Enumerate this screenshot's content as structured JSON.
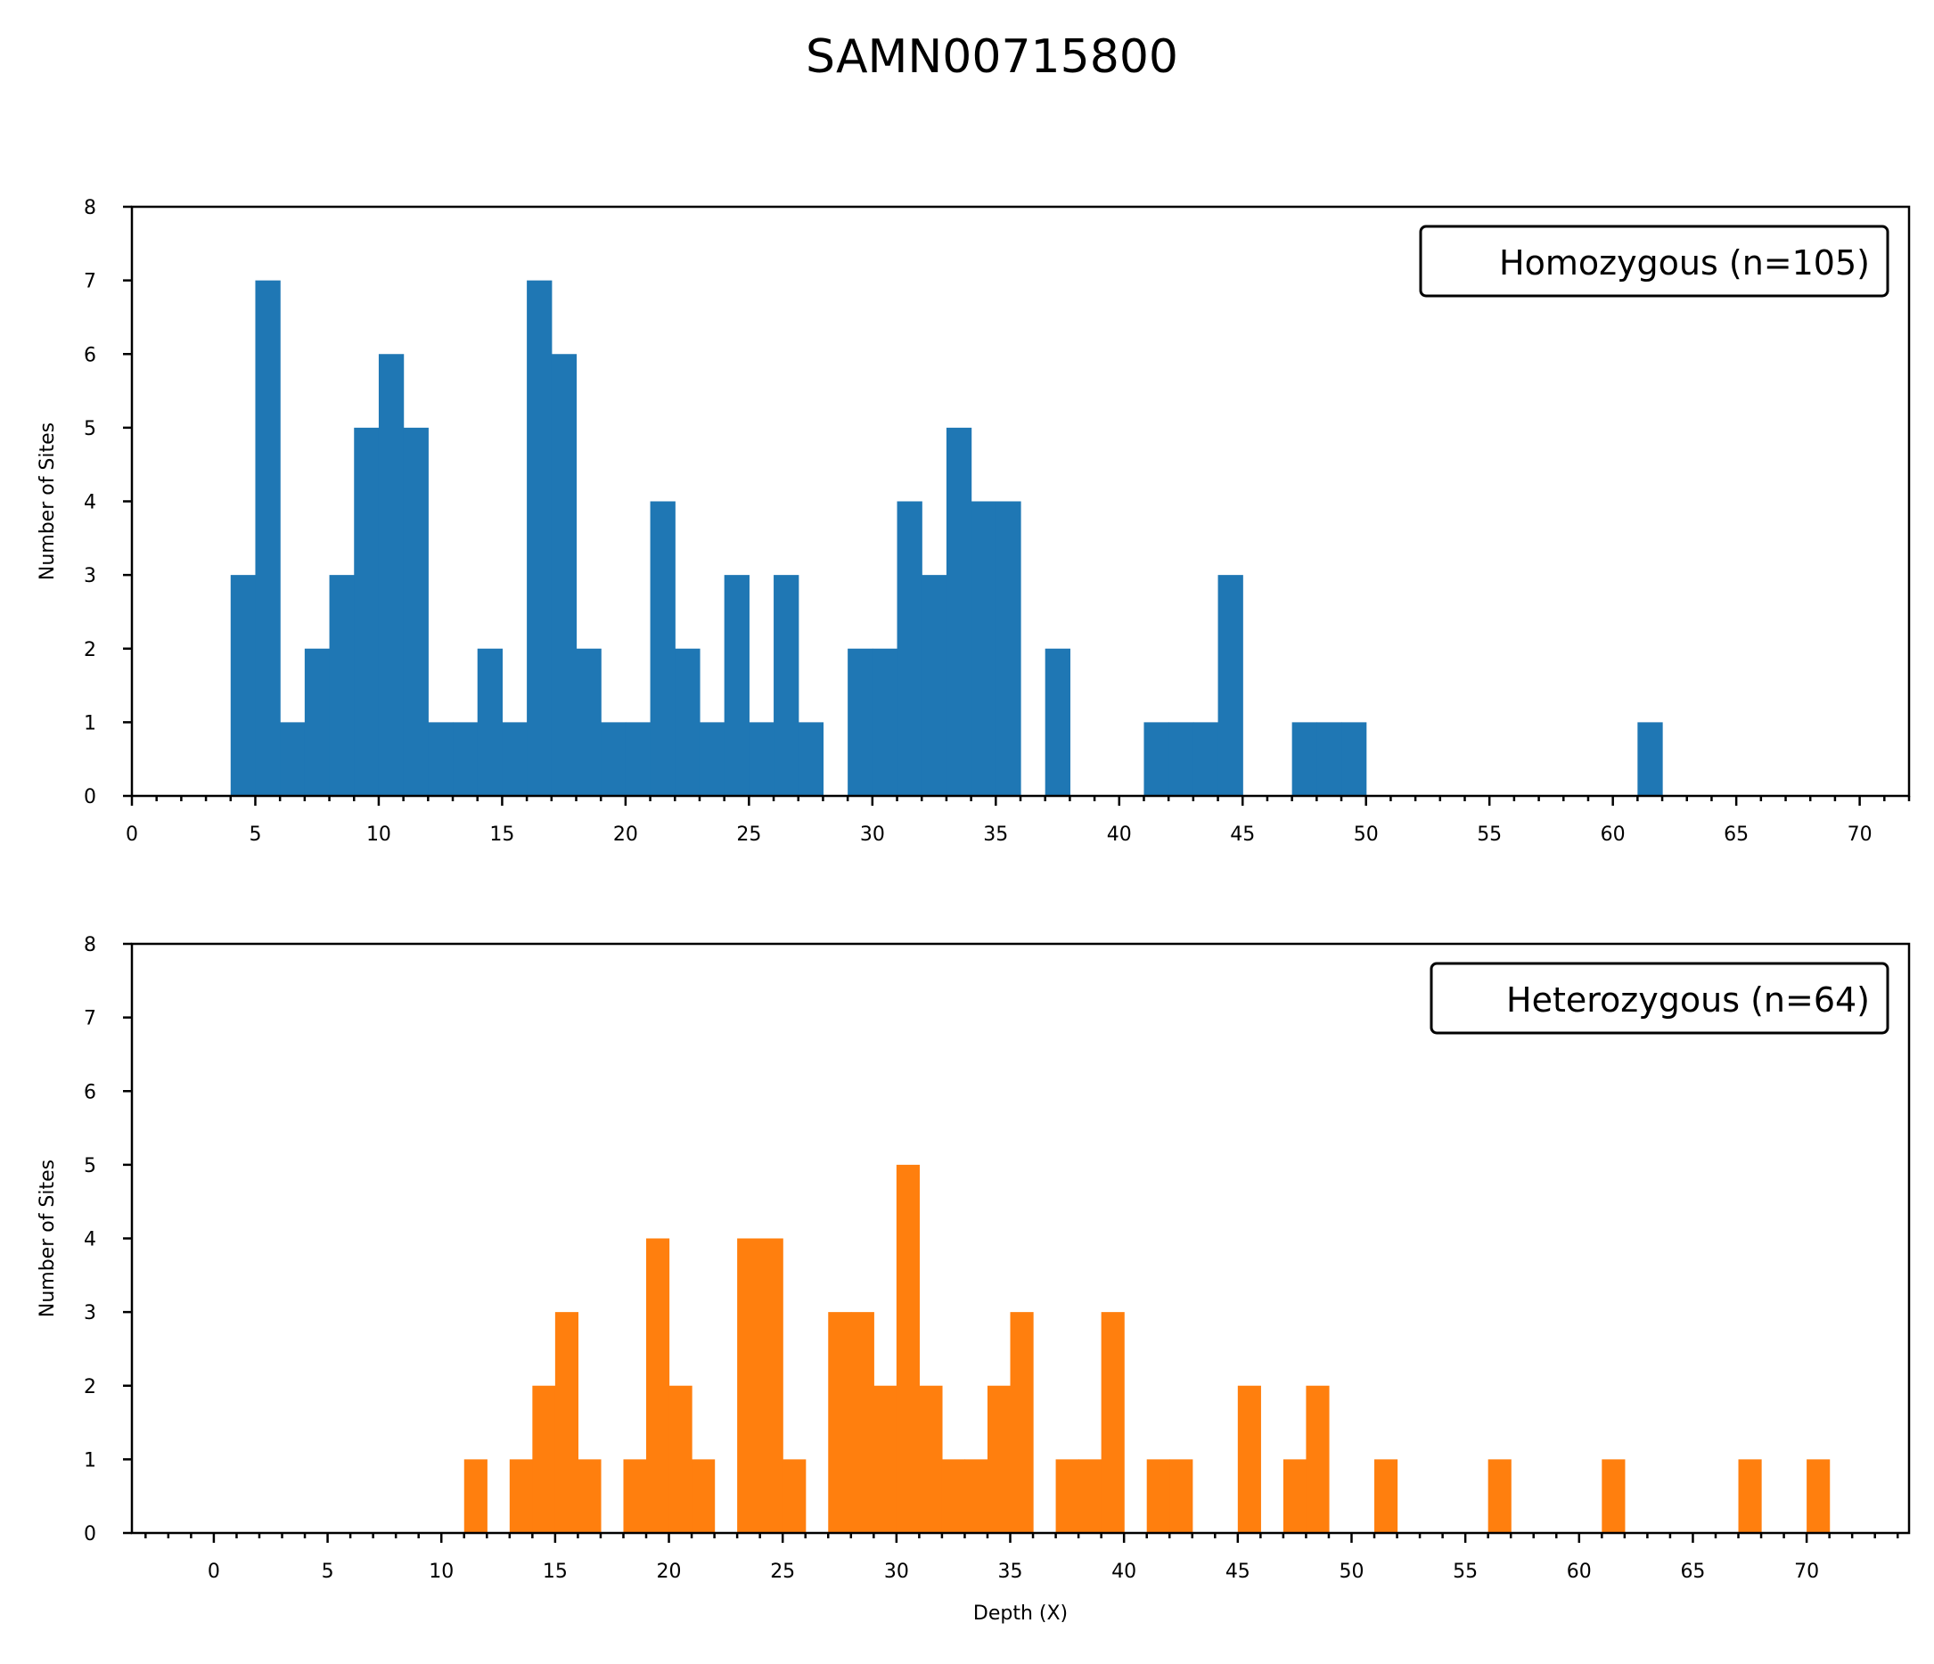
{
  "figure_title": "SAMN00715800",
  "chart_data": [
    {
      "type": "bar",
      "name": "Homozygous (n=105)",
      "color": "#1f77b4",
      "bin_width": 1,
      "xlim": [
        0,
        72
      ],
      "ylim": [
        0,
        8
      ],
      "xticks": [
        0,
        5,
        10,
        15,
        20,
        25,
        30,
        35,
        40,
        45,
        50,
        55,
        60,
        65,
        70
      ],
      "yticks": [
        0,
        1,
        2,
        3,
        4,
        5,
        6,
        7,
        8
      ],
      "xlabel": "",
      "ylabel": "Number of Sites",
      "legend_label": "Homozygous (n=105)",
      "legend_position": "top-right",
      "grid": false,
      "bins": [
        {
          "start": 4,
          "count": 3
        },
        {
          "start": 5,
          "count": 7
        },
        {
          "start": 6,
          "count": 1
        },
        {
          "start": 7,
          "count": 2
        },
        {
          "start": 8,
          "count": 3
        },
        {
          "start": 9,
          "count": 5
        },
        {
          "start": 10,
          "count": 6
        },
        {
          "start": 11,
          "count": 5
        },
        {
          "start": 12,
          "count": 1
        },
        {
          "start": 13,
          "count": 1
        },
        {
          "start": 14,
          "count": 2
        },
        {
          "start": 15,
          "count": 1
        },
        {
          "start": 16,
          "count": 7
        },
        {
          "start": 17,
          "count": 6
        },
        {
          "start": 18,
          "count": 2
        },
        {
          "start": 19,
          "count": 1
        },
        {
          "start": 20,
          "count": 1
        },
        {
          "start": 21,
          "count": 4
        },
        {
          "start": 22,
          "count": 2
        },
        {
          "start": 23,
          "count": 1
        },
        {
          "start": 24,
          "count": 3
        },
        {
          "start": 25,
          "count": 1
        },
        {
          "start": 26,
          "count": 3
        },
        {
          "start": 27,
          "count": 1
        },
        {
          "start": 29,
          "count": 2
        },
        {
          "start": 30,
          "count": 2
        },
        {
          "start": 31,
          "count": 4
        },
        {
          "start": 32,
          "count": 3
        },
        {
          "start": 33,
          "count": 5
        },
        {
          "start": 34,
          "count": 4
        },
        {
          "start": 35,
          "count": 4
        },
        {
          "start": 37,
          "count": 2
        },
        {
          "start": 41,
          "count": 1
        },
        {
          "start": 42,
          "count": 1
        },
        {
          "start": 43,
          "count": 1
        },
        {
          "start": 44,
          "count": 3
        },
        {
          "start": 47,
          "count": 1
        },
        {
          "start": 48,
          "count": 1
        },
        {
          "start": 49,
          "count": 1
        },
        {
          "start": 61,
          "count": 1
        }
      ]
    },
    {
      "type": "bar",
      "name": "Heterozygous (n=64)",
      "color": "#ff7f0e",
      "bin_width": 1,
      "xlim": [
        -3.6,
        74.5
      ],
      "ylim": [
        0,
        8
      ],
      "xticks": [
        0,
        5,
        10,
        15,
        20,
        25,
        30,
        35,
        40,
        45,
        50,
        55,
        60,
        65,
        70
      ],
      "yticks": [
        0,
        1,
        2,
        3,
        4,
        5,
        6,
        7,
        8
      ],
      "xlabel": "Depth (X)",
      "ylabel": "Number of Sites",
      "legend_label": "Heterozygous (n=64)",
      "legend_position": "top-right",
      "grid": false,
      "bins": [
        {
          "start": 11,
          "count": 1
        },
        {
          "start": 13,
          "count": 1
        },
        {
          "start": 14,
          "count": 2
        },
        {
          "start": 15,
          "count": 3
        },
        {
          "start": 16,
          "count": 1
        },
        {
          "start": 18,
          "count": 1
        },
        {
          "start": 19,
          "count": 4
        },
        {
          "start": 20,
          "count": 2
        },
        {
          "start": 21,
          "count": 1
        },
        {
          "start": 23,
          "count": 4
        },
        {
          "start": 24,
          "count": 4
        },
        {
          "start": 25,
          "count": 1
        },
        {
          "start": 27,
          "count": 3
        },
        {
          "start": 28,
          "count": 3
        },
        {
          "start": 29,
          "count": 2
        },
        {
          "start": 30,
          "count": 5
        },
        {
          "start": 31,
          "count": 2
        },
        {
          "start": 32,
          "count": 1
        },
        {
          "start": 33,
          "count": 1
        },
        {
          "start": 34,
          "count": 2
        },
        {
          "start": 35,
          "count": 3
        },
        {
          "start": 37,
          "count": 1
        },
        {
          "start": 38,
          "count": 1
        },
        {
          "start": 39,
          "count": 3
        },
        {
          "start": 41,
          "count": 1
        },
        {
          "start": 42,
          "count": 1
        },
        {
          "start": 45,
          "count": 2
        },
        {
          "start": 47,
          "count": 1
        },
        {
          "start": 48,
          "count": 2
        },
        {
          "start": 51,
          "count": 1
        },
        {
          "start": 56,
          "count": 1
        },
        {
          "start": 61,
          "count": 1
        },
        {
          "start": 67,
          "count": 1
        },
        {
          "start": 70,
          "count": 1
        }
      ]
    }
  ]
}
